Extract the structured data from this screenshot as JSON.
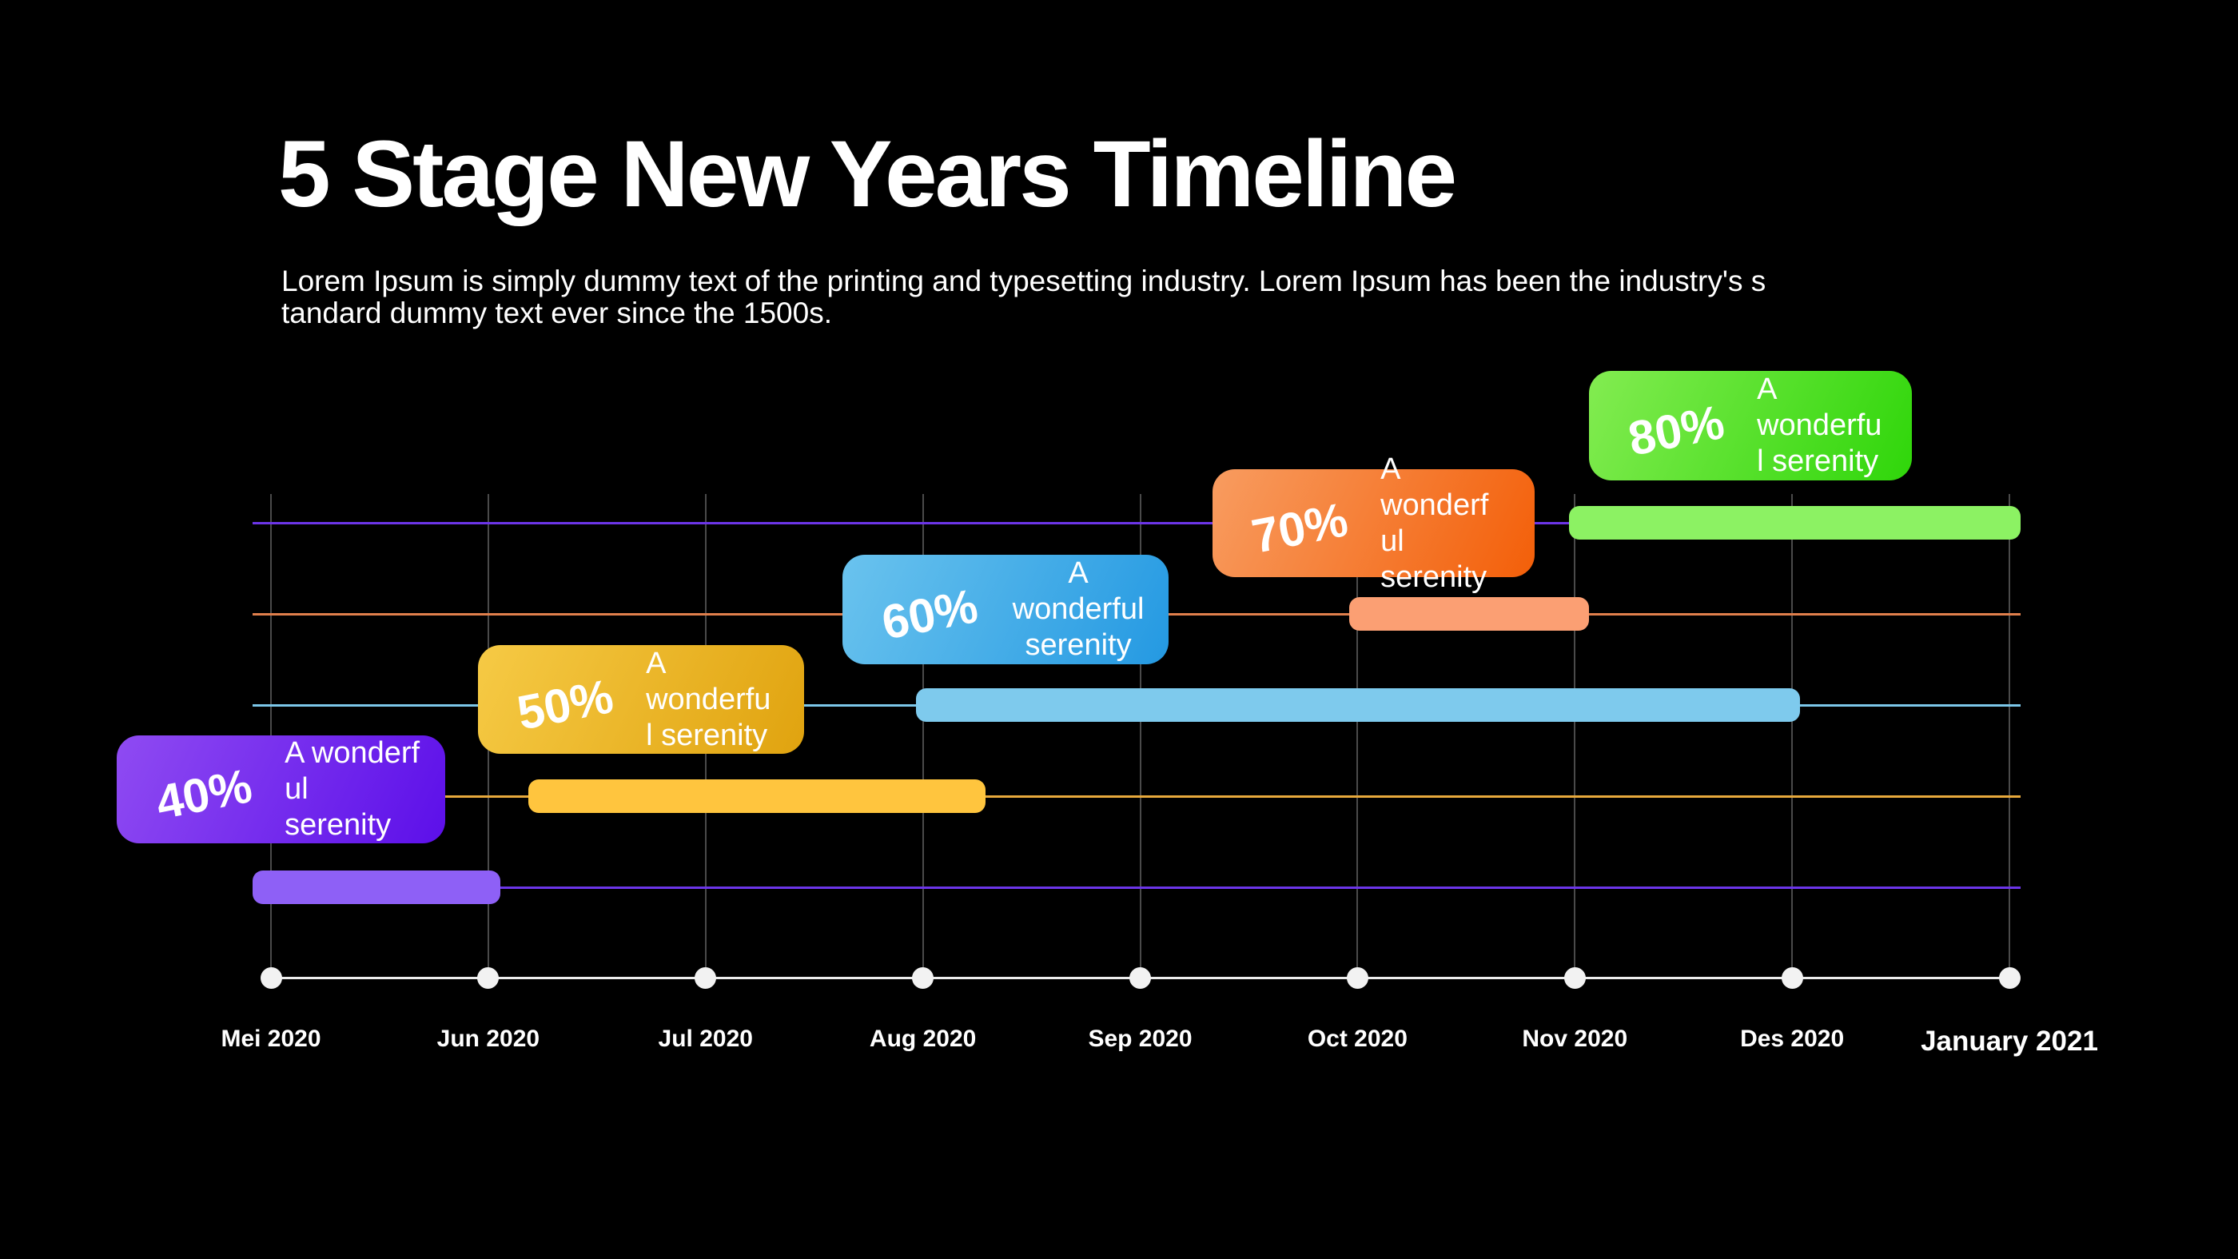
{
  "page": {
    "background": "#000000",
    "text_color": "#ffffff"
  },
  "header": {
    "title": "5 Stage New Years Timeline",
    "subtitle_lines": [
      "Lorem Ipsum is simply dummy text of the printing and typesetting industry. Lorem Ipsum has been the industry's s",
      "tandard dummy text ever since the 1500s."
    ]
  },
  "chart_data": {
    "type": "timeline",
    "title": "5 Stage New Years Timeline",
    "x_labels": [
      "Mei 2020",
      "Jun 2020",
      "Jul 2020",
      "Aug 2020",
      "Sep 2020",
      "Oct 2020",
      "Nov 2020",
      "Des 2020",
      "January 2021"
    ],
    "grid": true,
    "legend": "none",
    "axis_style": {
      "dot_color": "#f2f2f2",
      "line_color": "#ececec",
      "grid_color": "#4a4a4a"
    },
    "stages": [
      {
        "percent_label": "40%",
        "percent": 40,
        "label": "A wonderful serenity",
        "label_lines": [
          "A wonderf",
          "ul serenity"
        ],
        "label_align": "left",
        "start": "Mei 2020",
        "end": "Jun 2020",
        "card_gradient": [
          "#8f4bf2",
          "#5c0fe9"
        ],
        "bar_color": "#8e60f6",
        "line_color": "#6c35e8"
      },
      {
        "percent_label": "50%",
        "percent": 50,
        "label": "A wonderful serenity",
        "label_lines": [
          "A wonderfu",
          "l serenity"
        ],
        "label_align": "left",
        "start": "Jun 2020",
        "end": "Aug 2020",
        "card_gradient": [
          "#f6ca45",
          "#e0a30f"
        ],
        "bar_color": "#ffc53e",
        "line_color": "#e7a93c"
      },
      {
        "percent_label": "60%",
        "percent": 60,
        "label": "A wonderful serenity",
        "label_lines": [
          "A wonderful",
          "serenity"
        ],
        "label_align": "center",
        "start": "Aug 2020",
        "end": "Des 2020",
        "card_gradient": [
          "#6ac3ee",
          "#2499e2"
        ],
        "bar_color": "#7ecaed",
        "line_color": "#7cc7e9"
      },
      {
        "percent_label": "70%",
        "percent": 70,
        "label": "A wonderful serenity",
        "label_lines": [
          "A wonderf",
          "ul serenity"
        ],
        "label_align": "left",
        "start": "Oct 2020",
        "end": "Nov 2020",
        "card_gradient": [
          "#f89c60",
          "#f35f09"
        ],
        "bar_color": "#fb9f73",
        "line_color": "#e07f4c"
      },
      {
        "percent_label": "80%",
        "percent": 80,
        "label": "A wonderful serenity",
        "label_lines": [
          "A wonderfu",
          "l serenity"
        ],
        "label_align": "left",
        "start": "Nov 2020",
        "end": "January 2021",
        "card_gradient": [
          "#83ec51",
          "#2fd60a"
        ],
        "bar_color": "#8cf263",
        "line_color": "#6c35e8"
      }
    ]
  }
}
